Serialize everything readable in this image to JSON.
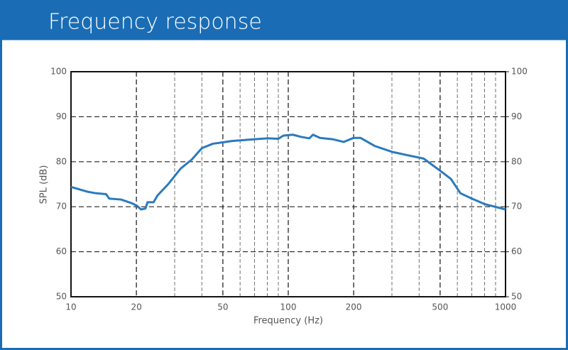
{
  "chart_data": {
    "type": "line",
    "title": "Frequency response",
    "xlabel": "Frequency (Hz)",
    "ylabel": "SPL (dB)",
    "xscale": "log",
    "xlim": [
      10,
      1000
    ],
    "xticks": [
      10,
      20,
      50,
      100,
      200,
      500,
      1000
    ],
    "x_minor_ticks": [
      30,
      40,
      60,
      70,
      80,
      90,
      300,
      400,
      600,
      700,
      800,
      900
    ],
    "ylim": [
      50,
      100
    ],
    "yticks": [
      50,
      60,
      70,
      80,
      90,
      100
    ],
    "y2lim": [
      50,
      100
    ],
    "y2ticks": [
      50,
      60,
      70,
      80,
      90,
      100
    ],
    "grid": true,
    "color": "#2a7abf",
    "x": [
      10,
      12,
      13,
      14.5,
      15,
      17,
      19,
      20,
      21,
      22,
      22.5,
      24,
      25,
      28,
      32,
      36,
      40,
      45,
      50,
      55,
      70,
      80,
      90,
      95,
      105,
      115,
      125,
      130,
      140,
      160,
      180,
      200,
      215,
      250,
      300,
      350,
      420,
      500,
      560,
      620,
      700,
      800,
      1000
    ],
    "values": [
      74.4,
      73.3,
      73.0,
      72.8,
      71.8,
      71.6,
      70.8,
      70.3,
      69.4,
      69.6,
      71.0,
      71.0,
      72.5,
      75,
      78.5,
      80.5,
      83,
      84,
      84.3,
      84.6,
      85,
      85.2,
      85.1,
      85.8,
      86,
      85.5,
      85.2,
      86,
      85.3,
      85,
      84.4,
      85.3,
      85.3,
      83.5,
      82.2,
      81.5,
      80.7,
      78,
      76.2,
      73,
      71.8,
      70.6,
      69.4
    ]
  }
}
